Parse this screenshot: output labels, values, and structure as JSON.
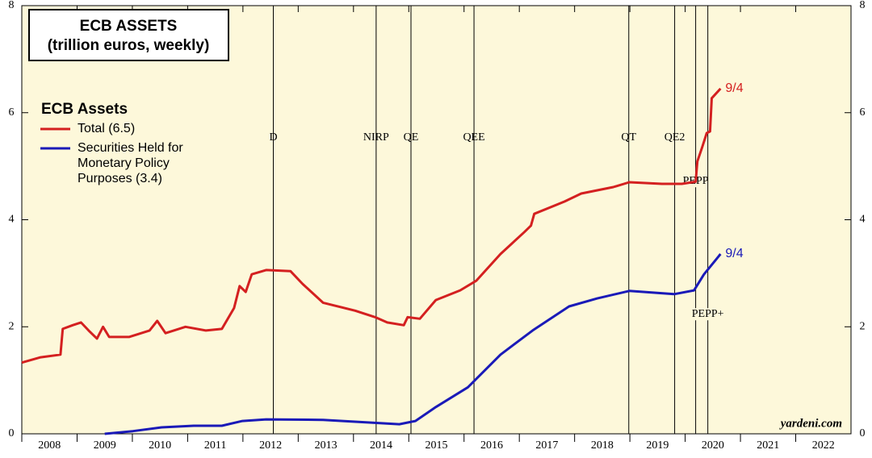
{
  "chart_data": {
    "type": "line",
    "title": "ECB ASSETS",
    "subtitle": "(trillion euros, weekly)",
    "legend_title": "ECB Assets",
    "source": "yardeni.com",
    "xlim": [
      2008,
      2023
    ],
    "xticks": [
      2008,
      2009,
      2010,
      2011,
      2012,
      2013,
      2014,
      2015,
      2016,
      2017,
      2018,
      2019,
      2020,
      2021,
      2022
    ],
    "ylim": [
      0,
      8
    ],
    "yticks": [
      0,
      2,
      4,
      6,
      8
    ],
    "events": [
      {
        "label": "D",
        "x": 2012.55
      },
      {
        "label": "NIRP",
        "x": 2014.41
      },
      {
        "label": "QE",
        "x": 2015.04
      },
      {
        "label": "QEE",
        "x": 2016.18
      },
      {
        "label": "QT",
        "x": 2018.98
      },
      {
        "label": "QE2",
        "x": 2019.81
      },
      {
        "label": "PEPP",
        "x": 2020.19
      },
      {
        "label": "PEPP+",
        "x": 2020.41
      }
    ],
    "series": [
      {
        "name": "Total (6.5)",
        "color": "#d42020",
        "end_label": "9/4",
        "x": [
          2008.0,
          2008.34,
          2008.7,
          2008.74,
          2008.92,
          2009.07,
          2009.21,
          2009.36,
          2009.47,
          2009.58,
          2009.94,
          2010.31,
          2010.45,
          2010.6,
          2010.96,
          2011.33,
          2011.62,
          2011.84,
          2011.94,
          2012.05,
          2012.16,
          2012.42,
          2012.86,
          2013.08,
          2013.45,
          2014.03,
          2014.39,
          2014.61,
          2014.91,
          2014.98,
          2015.2,
          2015.49,
          2015.93,
          2016.22,
          2016.66,
          2017.09,
          2017.21,
          2017.27,
          2017.82,
          2018.12,
          2018.7,
          2018.99,
          2019.58,
          2019.94,
          2020.19,
          2020.22,
          2020.31,
          2020.39,
          2020.45,
          2020.48,
          2020.64
        ],
        "values": [
          1.33,
          1.43,
          1.48,
          1.96,
          2.03,
          2.08,
          1.93,
          1.78,
          2.0,
          1.81,
          1.81,
          1.93,
          2.11,
          1.88,
          2.0,
          1.93,
          1.96,
          2.35,
          2.76,
          2.65,
          2.98,
          3.06,
          3.04,
          2.8,
          2.45,
          2.3,
          2.18,
          2.08,
          2.03,
          2.18,
          2.15,
          2.5,
          2.68,
          2.86,
          3.36,
          3.77,
          3.89,
          4.11,
          4.34,
          4.49,
          4.61,
          4.7,
          4.67,
          4.67,
          4.71,
          5.09,
          5.36,
          5.62,
          5.65,
          6.27,
          6.45
        ]
      },
      {
        "name": "Securities Held for Monetary Policy Purposes (3.4)",
        "color": "#1a1ab8",
        "end_label": "9/4",
        "x": [
          2009.5,
          2010.01,
          2010.53,
          2011.11,
          2011.62,
          2011.99,
          2012.42,
          2013.45,
          2014.32,
          2014.83,
          2015.12,
          2015.49,
          2016.07,
          2016.66,
          2017.24,
          2017.9,
          2018.41,
          2018.99,
          2019.8,
          2020.16,
          2020.34,
          2020.64
        ],
        "values": [
          0,
          0.05,
          0.12,
          0.15,
          0.15,
          0.24,
          0.27,
          0.26,
          0.21,
          0.18,
          0.24,
          0.5,
          0.87,
          1.48,
          1.93,
          2.38,
          2.53,
          2.67,
          2.61,
          2.68,
          2.98,
          3.36
        ]
      }
    ]
  }
}
